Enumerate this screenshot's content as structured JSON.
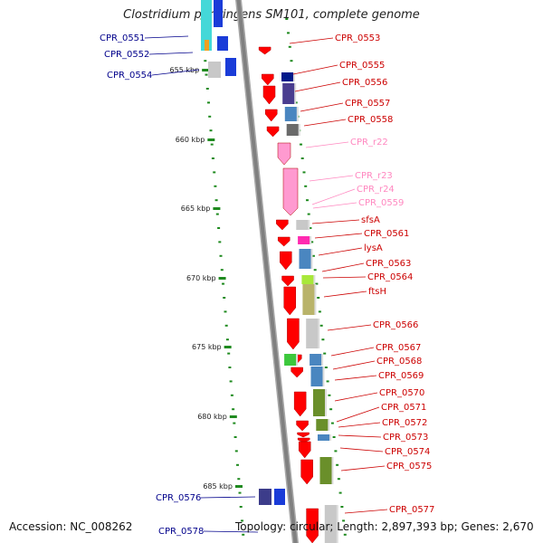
{
  "title": "Clostridium perfringens SM101, complete genome",
  "footer": {
    "accession": "Accession: NC_008262",
    "topology": "Topology: circular; Length: 2,897,393 bp; Genes: 2,670"
  },
  "colors": {
    "backbone": "#808080",
    "tick": "#1f8a1f",
    "arrow": "#ff0000",
    "left_label": "#00008b",
    "right_label": "#cc0000",
    "rna_label": "#ff88c0",
    "leader": "#cc0000",
    "pink": "#ff9ad0"
  },
  "ticks": [
    {
      "label": "655 kbp"
    },
    {
      "label": "660 kbp"
    },
    {
      "label": "665 kbp"
    },
    {
      "label": "670 kbp"
    },
    {
      "label": "675 kbp"
    },
    {
      "label": "680 kbp"
    },
    {
      "label": "685 kbp"
    }
  ],
  "left_labels": [
    "CPR_0551",
    "CPR_0552",
    "CPR_0554",
    "CPR_0576",
    "CPR_0578"
  ],
  "right_labels": [
    "CPR_0553",
    "CPR_0555",
    "CPR_0556",
    "CPR_0557",
    "CPR_0558",
    "CPR_r22",
    "CPR_r23",
    "CPR_r24",
    "CPR_0559",
    "sfsA",
    "CPR_0561",
    "lysA",
    "CPR_0563",
    "CPR_0564",
    "ftsH",
    "CPR_0566",
    "CPR_0567",
    "CPR_0568",
    "CPR_0569",
    "CPR_0570",
    "CPR_0571",
    "CPR_0572",
    "CPR_0573",
    "CPR_0574",
    "CPR_0575",
    "CPR_0577"
  ],
  "rna_genes": [
    "CPR_r22",
    "CPR_r23",
    "CPR_r24",
    "CPR_0559"
  ]
}
